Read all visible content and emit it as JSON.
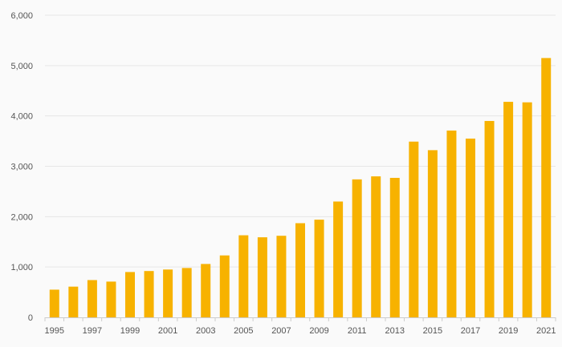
{
  "chart_data": {
    "type": "bar",
    "title": "",
    "xlabel": "",
    "ylabel": "",
    "categories": [
      "1995",
      "1996",
      "1997",
      "1998",
      "1999",
      "2000",
      "2001",
      "2002",
      "2003",
      "2004",
      "2005",
      "2006",
      "2007",
      "2008",
      "2009",
      "2010",
      "2011",
      "2012",
      "2013",
      "2014",
      "2015",
      "2016",
      "2017",
      "2018",
      "2019",
      "2020",
      "2021"
    ],
    "values": [
      550,
      610,
      740,
      710,
      900,
      920,
      950,
      980,
      1060,
      1230,
      1630,
      1590,
      1620,
      1870,
      1940,
      2300,
      2740,
      2800,
      2770,
      3490,
      3320,
      3710,
      3550,
      3900,
      4280,
      4270,
      5150
    ],
    "x_tick_labels": [
      "1995",
      "1997",
      "1999",
      "2001",
      "2003",
      "2005",
      "2007",
      "2009",
      "2011",
      "2013",
      "2015",
      "2017",
      "2019",
      "2021"
    ],
    "y_ticks": [
      0,
      1000,
      2000,
      3000,
      4000,
      5000,
      6000
    ],
    "y_tick_labels": [
      "0",
      "1,000",
      "2,000",
      "3,000",
      "4,000",
      "5,000",
      "6,000"
    ],
    "ylim": [
      0,
      6000
    ],
    "grid": true,
    "legend": "none",
    "bar_color": "#f7b200"
  }
}
